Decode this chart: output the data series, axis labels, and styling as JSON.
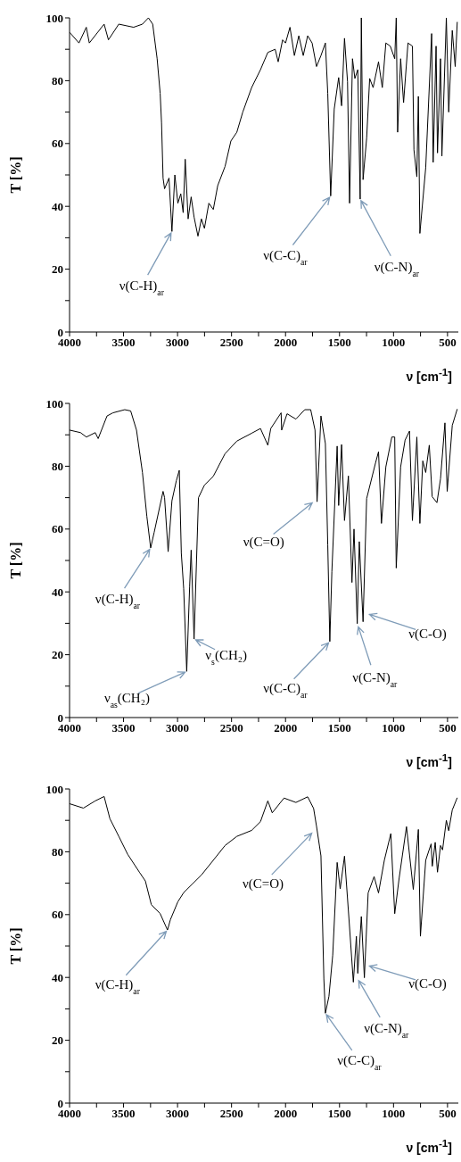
{
  "chart_data": [
    {
      "type": "line",
      "xlabel": "ν [cm$^{-1}$]",
      "ylabel": "T [%]",
      "color": "#000000",
      "xlim": [
        4000,
        400
      ],
      "xticks": [
        4000,
        {
          "value": 3750,
          "label": null
        },
        3500,
        {
          "value": 3250,
          "label": null
        },
        3000,
        {
          "value": 2750,
          "label": null
        },
        2500,
        {
          "value": 2250,
          "label": null
        },
        2000,
        {
          "value": 1750,
          "label": null
        },
        1500,
        {
          "value": 1250,
          "label": null
        },
        1000,
        {
          "value": 750,
          "label": null
        },
        500
      ],
      "ylim": [
        0,
        100
      ],
      "yticks": [
        0,
        {
          "value": 10,
          "label": null
        },
        20,
        {
          "value": 30,
          "label": null
        },
        40,
        {
          "value": 50,
          "label": null
        },
        60,
        {
          "value": 70,
          "label": null
        },
        80,
        {
          "value": 90,
          "label": null
        },
        100
      ],
      "x": [
        4000,
        3913,
        3845,
        3817,
        3680,
        3640,
        3544,
        3407,
        3325,
        3270,
        3230,
        3189,
        3161,
        3148,
        3134,
        3120,
        3079,
        3052,
        3025,
        2997,
        2970,
        2948,
        2929,
        2902,
        2874,
        2847,
        2811,
        2779,
        2751,
        2710,
        2669,
        2628,
        2560,
        2506,
        2451,
        2396,
        2314,
        2232,
        2164,
        2096,
        2068,
        2027,
        2000,
        1959,
        1918,
        1877,
        1836,
        1795,
        1754,
        1713,
        1672,
        1631,
        1609,
        1582,
        1549,
        1508,
        1481,
        1454,
        1426,
        1407,
        1380,
        1358,
        1331,
        1309,
        1298,
        1282,
        1249,
        1221,
        1189,
        1139,
        1104,
        1071,
        1030,
        989,
        975,
        962,
        934,
        907,
        866,
        825,
        811,
        784,
        770,
        756,
        702,
        647,
        633,
        606,
        593,
        565,
        552,
        511,
        489,
        456,
        429,
        410
      ],
      "values": [
        95.4,
        92,
        97,
        92,
        98,
        93,
        98,
        97,
        98,
        100,
        98,
        87,
        76,
        66.5,
        49,
        45.6,
        49,
        32,
        50,
        41,
        44,
        38,
        55,
        36,
        43,
        36.6,
        30.5,
        36,
        33,
        41,
        39,
        46.6,
        52.7,
        60.8,
        63.6,
        70,
        77.8,
        83.5,
        89,
        90,
        86,
        93,
        92,
        97,
        88,
        94.3,
        88,
        94.3,
        92,
        84.5,
        88,
        92,
        76,
        43.3,
        71,
        81,
        72,
        93.5,
        79.7,
        41,
        87,
        80.7,
        83.5,
        42.3,
        100,
        48.5,
        61.7,
        80.7,
        77.8,
        86,
        77.8,
        92,
        91,
        87,
        100,
        63.6,
        87,
        73,
        92,
        91,
        58,
        49.4,
        75,
        31.4,
        52.3,
        95,
        54,
        91,
        57,
        87,
        56,
        100,
        70,
        96,
        84.5,
        98.7
      ],
      "annotations": [
        {
          "text": "ν(C-H)$_{ar}$",
          "x": 3052,
          "y": 32
        },
        {
          "text": "ν(C-C)$_{ar}$",
          "x": 1582,
          "y": 43.3
        },
        {
          "text": "ν(C-N)$_{ar}$",
          "x": 1309,
          "y": 42.3
        }
      ]
    },
    {
      "type": "line",
      "xlabel": "ν [cm$^{-1}$]",
      "ylabel": "T [%]",
      "color": "#000000",
      "xlim": [
        4000,
        400
      ],
      "xticks": [
        4000,
        {
          "value": 3750,
          "label": null
        },
        3500,
        {
          "value": 3250,
          "label": null
        },
        3000,
        {
          "value": 2750,
          "label": null
        },
        2500,
        {
          "value": 2250,
          "label": null
        },
        2000,
        {
          "value": 1750,
          "label": null
        },
        1500,
        {
          "value": 1250,
          "label": null
        },
        1000,
        {
          "value": 750,
          "label": null
        },
        500
      ],
      "ylim": [
        0,
        100
      ],
      "yticks": [
        0,
        {
          "value": 10,
          "label": null
        },
        20,
        {
          "value": 30,
          "label": null
        },
        40,
        {
          "value": 50,
          "label": null
        },
        60,
        {
          "value": 70,
          "label": null
        },
        80,
        {
          "value": 90,
          "label": null
        },
        100
      ],
      "x": [
        4000,
        3899,
        3844,
        3762,
        3735,
        3653,
        3598,
        3489,
        3434,
        3380,
        3325,
        3284,
        3249,
        3216,
        3134,
        3120,
        3087,
        3052,
        3011,
        2984,
        2965,
        2943,
        2915,
        2888,
        2874,
        2847,
        2806,
        2751,
        2669,
        2560,
        2451,
        2314,
        2232,
        2164,
        2137,
        2041,
        2036,
        1986,
        1904,
        1822,
        1767,
        1727,
        1708,
        1672,
        1631,
        1609,
        1590,
        1571,
        1522,
        1508,
        1481,
        1454,
        1418,
        1385,
        1366,
        1336,
        1317,
        1282,
        1249,
        1167,
        1139,
        1112,
        1071,
        1016,
        989,
        975,
        934,
        893,
        852,
        825,
        784,
        756,
        729,
        702,
        669,
        642,
        598,
        565,
        524,
        503,
        456,
        410
      ],
      "values": [
        91.5,
        90.7,
        89.3,
        90.7,
        88.8,
        96,
        97,
        98,
        97.6,
        91.5,
        78,
        64,
        54,
        59,
        72,
        70,
        52.8,
        69,
        75.4,
        78.7,
        52.3,
        41,
        14.7,
        41.7,
        53.3,
        25,
        70,
        74,
        76.8,
        84,
        88,
        90.5,
        92,
        86.7,
        92,
        97,
        91.5,
        96.7,
        95,
        98,
        98,
        91.5,
        68.7,
        96,
        87.2,
        55,
        24.2,
        46.4,
        86.4,
        67.5,
        86.9,
        62.7,
        76.9,
        43,
        60,
        29.9,
        56,
        30.5,
        69.7,
        81,
        84.6,
        61.8,
        79.8,
        89.3,
        89.3,
        47.6,
        79.8,
        88.3,
        91.2,
        62.7,
        89.3,
        61.8,
        81.7,
        78,
        86.7,
        70.3,
        68.4,
        76,
        93.8,
        72,
        93,
        98.2
      ],
      "annotations": [
        {
          "text": "ν(C-H)$_{ar}$",
          "x": 3249,
          "y": 54
        },
        {
          "text": "ν$_{as}$(CH₂)",
          "x": 2915,
          "y": 14.7
        },
        {
          "text": "ν$_{s}$(CH₂)",
          "x": 2847,
          "y": 25
        },
        {
          "text": "ν(C=O)",
          "x": 1740,
          "y": 68.7
        },
        {
          "text": "ν(C-C)$_{ar}$",
          "x": 1590,
          "y": 24.2
        },
        {
          "text": "ν(C-N)$_{ar}$",
          "x": 1331,
          "y": 29.4
        },
        {
          "text": "ν(C-O)",
          "x": 1238,
          "y": 33
        }
      ]
    },
    {
      "type": "line",
      "xlabel": "ν [cm$^{-1}$]",
      "ylabel": "T [%]",
      "color": "#000000",
      "xlim": [
        4000,
        400
      ],
      "xticks": [
        4000,
        {
          "value": 3750,
          "label": null
        },
        3500,
        {
          "value": 3250,
          "label": null
        },
        3000,
        {
          "value": 2750,
          "label": null
        },
        2500,
        {
          "value": 2250,
          "label": null
        },
        2000,
        {
          "value": 1750,
          "label": null
        },
        1500,
        {
          "value": 1250,
          "label": null
        },
        1000,
        {
          "value": 750,
          "label": null
        },
        500
      ],
      "ylim": [
        0,
        100
      ],
      "yticks": [
        0,
        {
          "value": 10,
          "label": null
        },
        20,
        {
          "value": 30,
          "label": null
        },
        40,
        {
          "value": 50,
          "label": null
        },
        60,
        {
          "value": 70,
          "label": null
        },
        80,
        {
          "value": 90,
          "label": null
        },
        100
      ],
      "x": [
        4000,
        3872,
        3762,
        3680,
        3626,
        3544,
        3462,
        3353,
        3298,
        3243,
        3161,
        3093,
        3066,
        2997,
        2943,
        2861,
        2779,
        2669,
        2560,
        2451,
        2314,
        2232,
        2164,
        2123,
        2014,
        1904,
        1795,
        1740,
        1713,
        1672,
        1645,
        1631,
        1598,
        1563,
        1522,
        1494,
        1454,
        1413,
        1372,
        1344,
        1331,
        1298,
        1270,
        1235,
        1180,
        1139,
        1085,
        1025,
        989,
        948,
        880,
        817,
        770,
        751,
        702,
        652,
        641,
        614,
        593,
        565,
        546,
        511,
        489,
        456,
        410
      ],
      "values": [
        95.3,
        93.9,
        96.2,
        97.6,
        90.5,
        84.9,
        79.2,
        73.5,
        70.7,
        63.2,
        60.3,
        55.1,
        58.4,
        64.1,
        67,
        69.8,
        72.6,
        77.3,
        82,
        84.9,
        86.8,
        89.6,
        96.2,
        92.4,
        97.1,
        95.7,
        97.5,
        93.8,
        88.1,
        78.7,
        39.5,
        28.6,
        34,
        47.1,
        76.6,
        68.2,
        78.6,
        58.8,
        38.5,
        53.1,
        41.3,
        59.4,
        39.9,
        66.9,
        72.1,
        66.9,
        77.3,
        85.8,
        60.3,
        71.6,
        88,
        68,
        87.1,
        53.1,
        77.3,
        82.5,
        75.4,
        83,
        73.5,
        82,
        80.6,
        90,
        86.7,
        93.3,
        97.2
      ],
      "annotations": [
        {
          "text": "ν(C-H)$_{ar}$",
          "x": 3093,
          "y": 55.1
        },
        {
          "text": "ν(C=O)",
          "x": 1746,
          "y": 86.3
        },
        {
          "text": "ν(C-C)$_{ar}$",
          "x": 1631,
          "y": 28.6
        },
        {
          "text": "ν(C-N)$_{ar}$",
          "x": 1331,
          "y": 39.5
        },
        {
          "text": "ν(C-O)",
          "x": 1238,
          "y": 43.8
        }
      ]
    }
  ]
}
